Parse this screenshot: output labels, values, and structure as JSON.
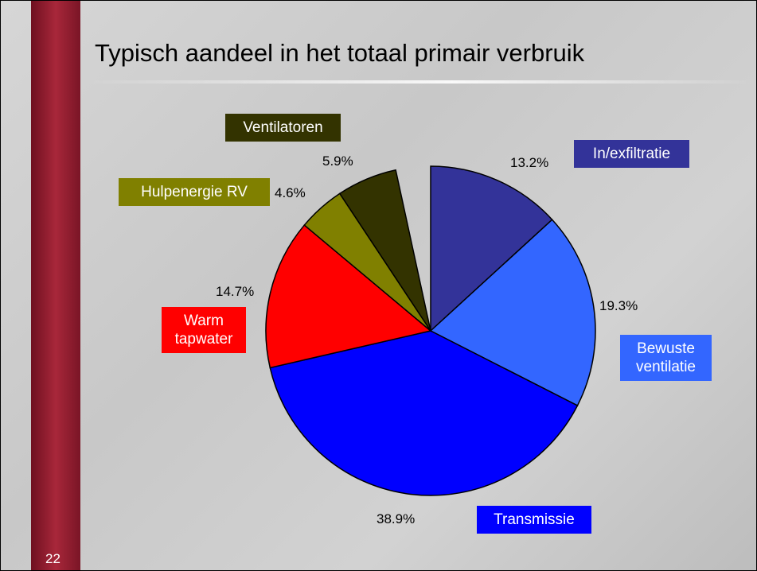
{
  "chart_data": {
    "type": "pie",
    "title": "Typisch aandeel in het totaal primair verbruik",
    "categories": [
      "In/exfiltratie",
      "Bewuste ventilatie",
      "Transmissie",
      "Warm tapwater",
      "Hulpenergie RV",
      "Ventilatoren"
    ],
    "values": [
      13.2,
      19.3,
      38.9,
      14.7,
      4.6,
      5.9
    ],
    "value_labels": [
      "13.2%",
      "19.3%",
      "38.9%",
      "14.7%",
      "4.6%",
      "5.9%"
    ],
    "colors": [
      "#333399",
      "#3366ff",
      "#0000ff",
      "#ff0000",
      "#808000",
      "#333300"
    ]
  },
  "page_number": "22"
}
